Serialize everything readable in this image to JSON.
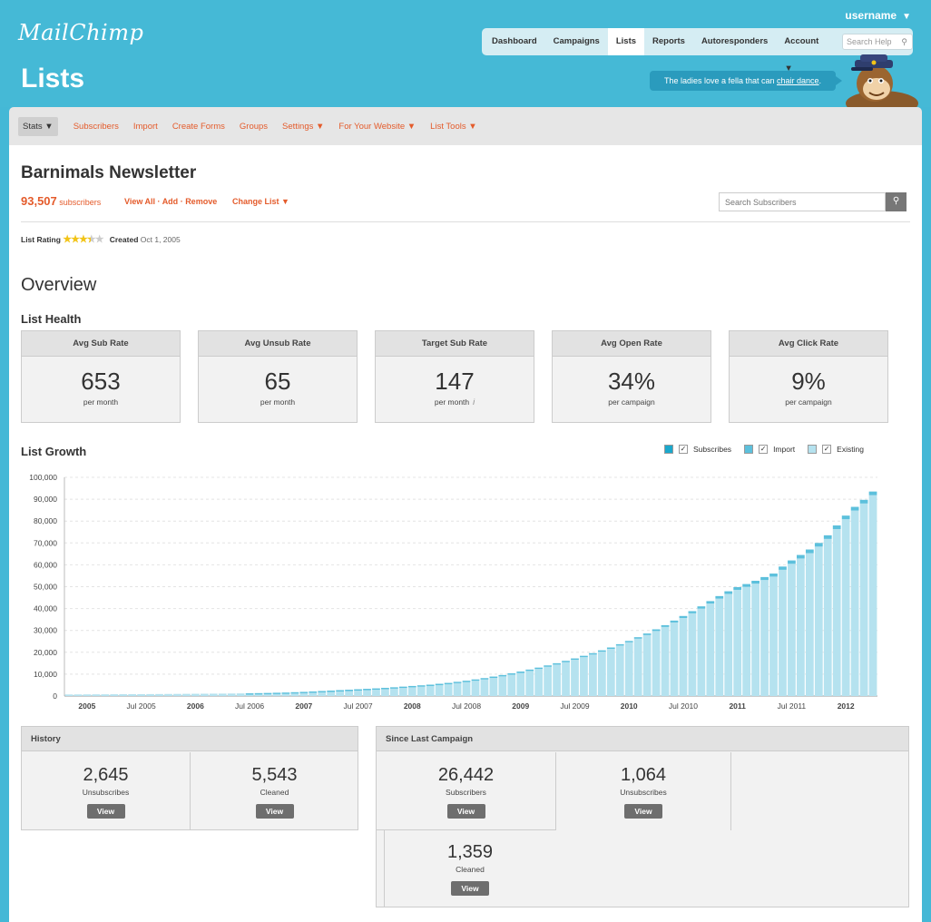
{
  "app": {
    "logo": "MailChimp",
    "page_title": "Lists",
    "username": "username"
  },
  "topnav": {
    "items": [
      {
        "label": "Dashboard"
      },
      {
        "label": "Campaigns"
      },
      {
        "label": "Lists"
      },
      {
        "label": "Reports"
      },
      {
        "label": "Autoresponders"
      },
      {
        "label": "Account ▼"
      }
    ],
    "active": "Lists",
    "help_placeholder": "Search Help"
  },
  "banner": {
    "text_before": "The ladies love a fella that can ",
    "link": "chair dance",
    "text_after": "."
  },
  "subnav": {
    "items": [
      {
        "label": "Stats ▼"
      },
      {
        "label": "Subscribers"
      },
      {
        "label": "Import"
      },
      {
        "label": "Create Forms"
      },
      {
        "label": "Groups"
      },
      {
        "label": "Settings ▼"
      },
      {
        "label": "For Your Website ▼"
      },
      {
        "label": "List Tools ▼"
      }
    ]
  },
  "list": {
    "name": "Barnimals Newsletter",
    "subscriber_count": "93,507",
    "subscriber_word": "subscribers",
    "view_all": "View All",
    "add": "Add",
    "remove": "Remove",
    "change_list": "Change List ▼",
    "search_placeholder": "Search Subscribers",
    "rating_label": "List Rating",
    "rating_stars": 3.5,
    "created_label": "Created",
    "created_value": "Oct 1, 2005"
  },
  "overview": {
    "title": "Overview",
    "health_title": "List Health",
    "stats": [
      {
        "label": "Avg Sub Rate",
        "value": "653",
        "unit": "per month"
      },
      {
        "label": "Avg Unsub Rate",
        "value": "65",
        "unit": "per month"
      },
      {
        "label": "Target Sub Rate",
        "value": "147",
        "unit": "per month"
      },
      {
        "label": "Avg Open Rate",
        "value": "34%",
        "unit": "per campaign"
      },
      {
        "label": "Avg Click Rate",
        "value": "9%",
        "unit": "per campaign"
      }
    ]
  },
  "growth": {
    "title": "List Growth",
    "legend": [
      {
        "label": "Subscribes",
        "color": "#1aa8cc"
      },
      {
        "label": "Import",
        "color": "#5cc0dc"
      },
      {
        "label": "Existing",
        "color": "#b5e2ef"
      }
    ]
  },
  "chart_data": {
    "type": "bar",
    "stacked": true,
    "ylim": [
      0,
      100000
    ],
    "yticks": [
      "100,000",
      "90,000",
      "80,000",
      "70,000",
      "60,000",
      "50,000",
      "40,000",
      "30,000",
      "20,000",
      "10,000",
      "0"
    ],
    "xticks": [
      {
        "label": "2005",
        "index": 2,
        "bold": true
      },
      {
        "label": "Jul 2005",
        "index": 8,
        "bold": false
      },
      {
        "label": "2006",
        "index": 14,
        "bold": true
      },
      {
        "label": "Jul 2006",
        "index": 20,
        "bold": false
      },
      {
        "label": "2007",
        "index": 26,
        "bold": true
      },
      {
        "label": "Jul 2007",
        "index": 32,
        "bold": false
      },
      {
        "label": "2008",
        "index": 38,
        "bold": true
      },
      {
        "label": "Jul 2008",
        "index": 44,
        "bold": false
      },
      {
        "label": "2009",
        "index": 50,
        "bold": true
      },
      {
        "label": "Jul 2009",
        "index": 56,
        "bold": false
      },
      {
        "label": "2010",
        "index": 62,
        "bold": true
      },
      {
        "label": "Jul 2010",
        "index": 68,
        "bold": false
      },
      {
        "label": "2011",
        "index": 74,
        "bold": true
      },
      {
        "label": "Jul 2011",
        "index": 80,
        "bold": false
      },
      {
        "label": "2012",
        "index": 86,
        "bold": true
      }
    ],
    "totals": [
      700,
      720,
      740,
      760,
      780,
      800,
      820,
      840,
      860,
      880,
      900,
      930,
      960,
      990,
      1020,
      1050,
      1080,
      1110,
      1150,
      1200,
      1260,
      1320,
      1400,
      1500,
      1600,
      1750,
      1900,
      2100,
      2300,
      2500,
      2700,
      2900,
      3100,
      3300,
      3500,
      3750,
      4000,
      4300,
      4600,
      4900,
      5200,
      5600,
      6000,
      6500,
      7000,
      7600,
      8200,
      8900,
      9600,
      10400,
      11200,
      12100,
      13000,
      14000,
      15000,
      16100,
      17200,
      18400,
      19600,
      20900,
      22200,
      23700,
      25200,
      26900,
      28600,
      30500,
      32400,
      34500,
      36600,
      38800,
      41000,
      43400,
      45700,
      47900,
      49800,
      51200,
      52700,
      54400,
      56000,
      59200,
      62000,
      64500,
      67000,
      70000,
      73500,
      78000,
      82500,
      86500,
      89700,
      93507
    ],
    "subscribes_top": 1200,
    "series": [
      {
        "name": "Subscribes",
        "color": "#1aa8cc"
      },
      {
        "name": "Import",
        "color": "#5cc0dc"
      },
      {
        "name": "Existing",
        "color": "#b5e2ef"
      }
    ]
  },
  "history": {
    "title": "History",
    "cells": [
      {
        "value": "2,645",
        "label": "Unsubscribes",
        "button": "View"
      },
      {
        "value": "5,543",
        "label": "Cleaned",
        "button": "View"
      }
    ]
  },
  "since_last": {
    "title": "Since Last Campaign",
    "cells": [
      {
        "value": "26,442",
        "label": "Subscribers",
        "button": "View"
      },
      {
        "value": "1,064",
        "label": "Unsubscribes",
        "button": "View"
      },
      {
        "value": "1,359",
        "label": "Cleaned",
        "button": "View"
      }
    ]
  }
}
